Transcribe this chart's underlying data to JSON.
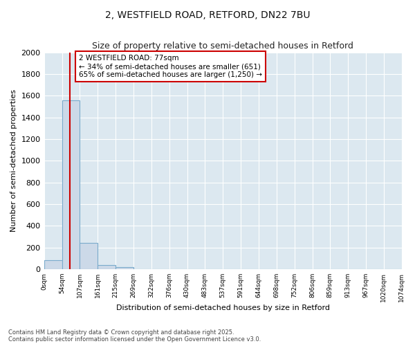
{
  "title_line1": "2, WESTFIELD ROAD, RETFORD, DN22 7BU",
  "title_line2": "Size of property relative to semi-detached houses in Retford",
  "xlabel": "Distribution of semi-detached houses by size in Retford",
  "ylabel": "Number of semi-detached properties",
  "bin_edges": [
    0,
    54,
    107,
    161,
    215,
    269,
    322,
    376,
    430,
    483,
    537,
    591,
    644,
    698,
    752,
    806,
    859,
    913,
    967,
    1020,
    1074
  ],
  "bar_heights": [
    80,
    1560,
    240,
    35,
    20,
    0,
    0,
    0,
    0,
    0,
    0,
    0,
    0,
    0,
    0,
    0,
    0,
    0,
    0,
    0
  ],
  "bar_color": "#ccd9e8",
  "bar_edge_color": "#7aabcc",
  "property_size": 77,
  "red_line_color": "#cc0000",
  "annotation_line1": "2 WESTFIELD ROAD: 77sqm",
  "annotation_line2": "← 34% of semi-detached houses are smaller (651)",
  "annotation_line3": "65% of semi-detached houses are larger (1,250) →",
  "annotation_box_color": "#ffffff",
  "annotation_box_edge_color": "#cc0000",
  "ylim": [
    0,
    2000
  ],
  "yticks": [
    0,
    200,
    400,
    600,
    800,
    1000,
    1200,
    1400,
    1600,
    1800,
    2000
  ],
  "fig_background_color": "#ffffff",
  "plot_background_color": "#dce8f0",
  "grid_color": "#ffffff",
  "footnote": "Contains HM Land Registry data © Crown copyright and database right 2025.\nContains public sector information licensed under the Open Government Licence v3.0."
}
